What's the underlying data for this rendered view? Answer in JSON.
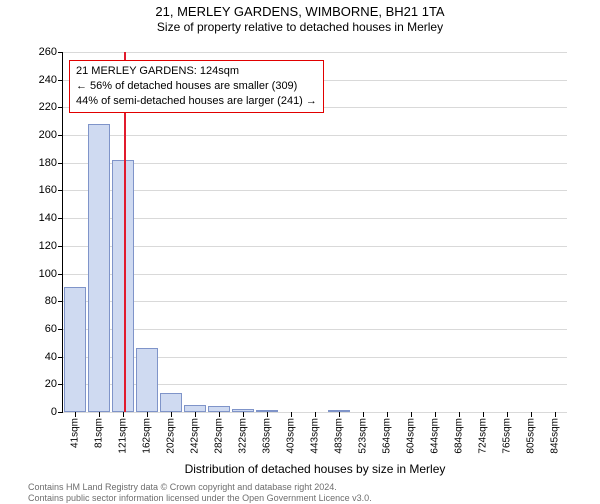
{
  "title": "21, MERLEY GARDENS, WIMBORNE, BH21 1TA",
  "subtitle": "Size of property relative to detached houses in Merley",
  "yAxisTitle": "Number of detached properties",
  "xAxisTitle": "Distribution of detached houses by size in Merley",
  "footer": {
    "line1": "Contains HM Land Registry data © Crown copyright and database right 2024.",
    "line2": "Contains public sector information licensed under the Open Government Licence v3.0."
  },
  "annotation": {
    "line1": "21 MERLEY GARDENS: 124sqm",
    "line2": "← 56% of detached houses are smaller (309)",
    "line3": "44% of semi-detached houses are larger (241) →"
  },
  "chart": {
    "type": "bar",
    "bar_fill": "#cfdaf1",
    "bar_border": "#7f94c9",
    "grid_color": "#d9d9d9",
    "refline_color": "#e11b2d",
    "annot_border": "#e10000",
    "background": "#ffffff",
    "title_fontsize": 13,
    "subtitle_fontsize": 12,
    "axis_title_fontsize": 12,
    "tick_fontsize": 11,
    "xtick_fontsize": 10,
    "footer_fontsize": 9,
    "footer_color": "#6e6e6e",
    "ylim": [
      0,
      260
    ],
    "ytick_step": 20,
    "bar_width_ratio": 0.9,
    "reference_x_value": 124,
    "x_bin_start": 21,
    "x_bin_width": 40.2,
    "categories": [
      "41sqm",
      "81sqm",
      "121sqm",
      "162sqm",
      "202sqm",
      "242sqm",
      "282sqm",
      "322sqm",
      "363sqm",
      "403sqm",
      "443sqm",
      "483sqm",
      "523sqm",
      "564sqm",
      "604sqm",
      "644sqm",
      "684sqm",
      "724sqm",
      "765sqm",
      "805sqm",
      "845sqm"
    ],
    "values": [
      90,
      208,
      182,
      46,
      14,
      5,
      4,
      2,
      1,
      0,
      0,
      1,
      0,
      0,
      0,
      0,
      0,
      0,
      0,
      0,
      0
    ]
  }
}
